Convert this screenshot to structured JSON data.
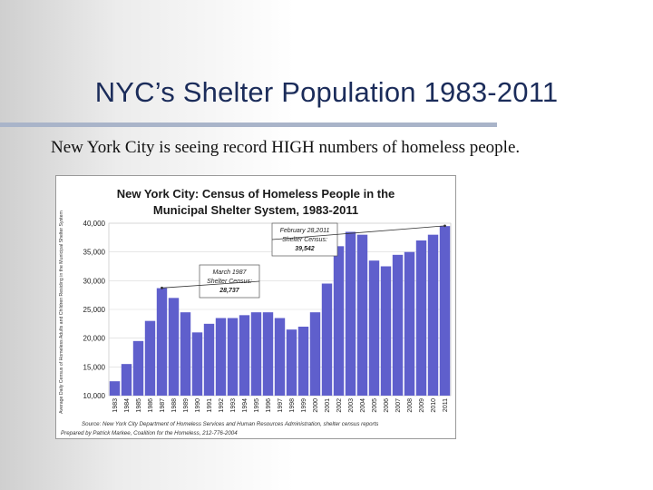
{
  "slide": {
    "title": "NYC’s Shelter Population 1983-2011",
    "subtitle": "New York City is seeing record HIGH numbers of homeless people."
  },
  "chart_data": {
    "type": "bar",
    "title_line1": "New York City:  Census of Homeless People in the",
    "title_line2": "Municipal Shelter System, 1983-2011",
    "ylabel": "Average Daily Census of Homeless Adults and Children Residing in the Municipal Shelter System",
    "ylim": [
      10000,
      40000
    ],
    "yticks": [
      10000,
      15000,
      20000,
      25000,
      30000,
      35000,
      40000
    ],
    "ytick_labels": [
      "10,000",
      "15,000",
      "20,000",
      "25,000",
      "30,000",
      "35,000",
      "40,000"
    ],
    "categories": [
      "1983",
      "1984",
      "1985",
      "1986",
      "1987",
      "1988",
      "1989",
      "1990",
      "1991",
      "1992",
      "1993",
      "1994",
      "1995",
      "1996",
      "1997",
      "1998",
      "1999",
      "2000",
      "2001",
      "2002",
      "2003",
      "2004",
      "2005",
      "2006",
      "2007",
      "2008",
      "2009",
      "2010",
      "2011"
    ],
    "values": [
      12500,
      15500,
      19500,
      23000,
      28700,
      27000,
      24500,
      21000,
      22500,
      23500,
      23500,
      24000,
      24500,
      24500,
      23500,
      21500,
      22000,
      24500,
      29500,
      36000,
      38500,
      38000,
      33500,
      32500,
      34500,
      35000,
      37000,
      38000,
      39500
    ],
    "bar_color": "#5f5fcc",
    "annotations": [
      {
        "lines": [
          "March 1987",
          "Shelter Census:",
          "28,737"
        ],
        "year": 1987,
        "value": 28737
      },
      {
        "lines": [
          "February 28,2011",
          "Shelter Census:",
          "39,542"
        ],
        "year": 2011,
        "value": 39542
      }
    ],
    "source_line1": "Source:  New York City Department of Homeless Services and Human Resources Administration, shelter census reports",
    "source_line2": "Prepared by Patrick Markee, Coalition for the Homeless, 212-776-2004",
    "grid": true,
    "legend": "none"
  }
}
